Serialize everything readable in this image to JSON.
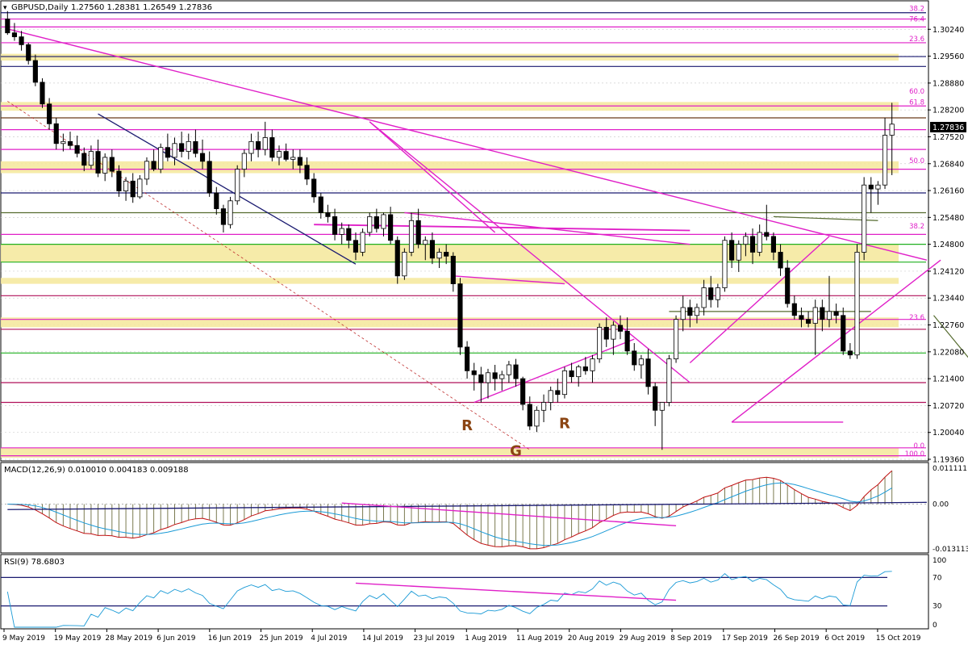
{
  "header": {
    "symbol_label": "GBPUSD,Daily",
    "ohlc_label": "1.27560 1.28381 1.26549 1.27836"
  },
  "macd_label": "MACD(12,26,9) 0.010010 0.004183 0.009188",
  "rsi_label": "RSI(9) 78.6803",
  "price_axis": {
    "ticks": [
      "1.30240",
      "1.29560",
      "1.28880",
      "1.28200",
      "1.27520",
      "1.26840",
      "1.26160",
      "1.25480",
      "1.24800",
      "1.24120",
      "1.23440",
      "1.22760",
      "1.22080",
      "1.21400",
      "1.20720",
      "1.20040",
      "1.19360"
    ],
    "current_price": "1.27836"
  },
  "macd_axis": {
    "ticks": [
      "0.011111",
      "0.00",
      "-0.013113"
    ]
  },
  "rsi_axis": {
    "ticks": [
      "100",
      "70",
      "30",
      "0"
    ]
  },
  "time_axis": [
    "9 May 2019",
    "19 May 2019",
    "28 May 2019",
    "6 Jun 2019",
    "16 Jun 2019",
    "25 Jun 2019",
    "4 Jul 2019",
    "14 Jul 2019",
    "23 Jul 2019",
    "1 Aug 2019",
    "11 Aug 2019",
    "20 Aug 2019",
    "29 Aug 2019",
    "8 Sep 2019",
    "17 Sep 2019",
    "26 Sep 2019",
    "6 Oct 2019",
    "15 Oct 2019"
  ],
  "fib_labels": [
    {
      "text": "38.2",
      "price": 1.3066
    },
    {
      "text": "76.4",
      "price": 1.304
    },
    {
      "text": "23.6",
      "price": 1.299
    },
    {
      "text": "60.0",
      "price": 1.2857
    },
    {
      "text": "61.8",
      "price": 1.283
    },
    {
      "text": "50.0",
      "price": 1.2681
    },
    {
      "text": "38.2",
      "price": 1.2516
    },
    {
      "text": "23.6",
      "price": 1.2285
    },
    {
      "text": "0.0",
      "price": 1.196
    },
    {
      "text": "100.0",
      "price": 1.194
    }
  ],
  "annotations": [
    {
      "text": "R",
      "date_index": 66,
      "price": 1.201
    },
    {
      "text": "R",
      "date_index": 80,
      "price": 1.2015
    },
    {
      "text": "G",
      "date_index": 73,
      "price": 1.1945
    }
  ],
  "colors": {
    "up_candle": "#ffffff",
    "down_candle": "#000000",
    "magenta": "#e020c8",
    "crimson": "#b0105a",
    "navy": "#1a1a70",
    "green": "#20b020",
    "olive": "#556b2f",
    "zone": "#f5e9a0",
    "signal": "#1a9ad6",
    "macd_line": "#c01010",
    "hist": "#7a7a50"
  },
  "chart_data": [
    {
      "type": "candlestick",
      "title": "GBPUSD,Daily",
      "ylim": [
        1.1936,
        1.3092
      ],
      "x_start": "2019-05-09",
      "x_end": "2019-10-17",
      "candles": [
        [
          1.305,
          1.307,
          1.301,
          1.3015
        ],
        [
          1.3015,
          1.304,
          1.2995,
          1.3005
        ],
        [
          1.3005,
          1.302,
          1.297,
          1.2985
        ],
        [
          1.2985,
          1.299,
          1.2935,
          1.2945
        ],
        [
          1.2945,
          1.296,
          1.288,
          1.289
        ],
        [
          1.289,
          1.29,
          1.2825,
          1.2835
        ],
        [
          1.2835,
          1.285,
          1.277,
          1.2785
        ],
        [
          1.2785,
          1.28,
          1.272,
          1.2735
        ],
        [
          1.2735,
          1.276,
          1.2715,
          1.274
        ],
        [
          1.274,
          1.2765,
          1.272,
          1.273
        ],
        [
          1.273,
          1.2755,
          1.27,
          1.271
        ],
        [
          1.271,
          1.2725,
          1.2665,
          1.268
        ],
        [
          1.268,
          1.273,
          1.267,
          1.2715
        ],
        [
          1.2715,
          1.2745,
          1.265,
          1.266
        ],
        [
          1.266,
          1.271,
          1.264,
          1.27
        ],
        [
          1.27,
          1.272,
          1.265,
          1.2665
        ],
        [
          1.2665,
          1.268,
          1.26,
          1.2615
        ],
        [
          1.2615,
          1.265,
          1.259,
          1.264
        ],
        [
          1.264,
          1.266,
          1.2585,
          1.26
        ],
        [
          1.26,
          1.2655,
          1.2595,
          1.2645
        ],
        [
          1.2645,
          1.27,
          1.263,
          1.269
        ],
        [
          1.269,
          1.272,
          1.2665,
          1.267
        ],
        [
          1.267,
          1.2735,
          1.266,
          1.2725
        ],
        [
          1.2725,
          1.276,
          1.269,
          1.27
        ],
        [
          1.27,
          1.275,
          1.268,
          1.2735
        ],
        [
          1.2735,
          1.2765,
          1.27,
          1.2715
        ],
        [
          1.2715,
          1.276,
          1.2695,
          1.274
        ],
        [
          1.274,
          1.277,
          1.27,
          1.271
        ],
        [
          1.271,
          1.2745,
          1.267,
          1.269
        ],
        [
          1.269,
          1.2715,
          1.26,
          1.261
        ],
        [
          1.261,
          1.2625,
          1.2555,
          1.257
        ],
        [
          1.257,
          1.258,
          1.251,
          1.253
        ],
        [
          1.253,
          1.26,
          1.252,
          1.259
        ],
        [
          1.259,
          1.268,
          1.258,
          1.267
        ],
        [
          1.267,
          1.272,
          1.265,
          1.271
        ],
        [
          1.271,
          1.276,
          1.269,
          1.274
        ],
        [
          1.274,
          1.2765,
          1.27,
          1.272
        ],
        [
          1.272,
          1.279,
          1.2705,
          1.275
        ],
        [
          1.275,
          1.277,
          1.269,
          1.27
        ],
        [
          1.27,
          1.273,
          1.268,
          1.2715
        ],
        [
          1.2715,
          1.2735,
          1.269,
          1.2695
        ],
        [
          1.2695,
          1.272,
          1.267,
          1.27
        ],
        [
          1.27,
          1.272,
          1.266,
          1.268
        ],
        [
          1.268,
          1.27,
          1.263,
          1.2645
        ],
        [
          1.2645,
          1.266,
          1.2585,
          1.26
        ],
        [
          1.26,
          1.261,
          1.2545,
          1.256
        ],
        [
          1.256,
          1.258,
          1.2535,
          1.255
        ],
        [
          1.255,
          1.257,
          1.249,
          1.2505
        ],
        [
          1.2505,
          1.2535,
          1.248,
          1.252
        ],
        [
          1.252,
          1.253,
          1.247,
          1.249
        ],
        [
          1.249,
          1.251,
          1.244,
          1.246
        ],
        [
          1.246,
          1.252,
          1.245,
          1.251
        ],
        [
          1.251,
          1.256,
          1.25,
          1.255
        ],
        [
          1.255,
          1.257,
          1.251,
          1.252
        ],
        [
          1.252,
          1.256,
          1.25,
          1.2555
        ],
        [
          1.2555,
          1.2575,
          1.248,
          1.249
        ],
        [
          1.249,
          1.25,
          1.238,
          1.24
        ],
        [
          1.24,
          1.247,
          1.239,
          1.246
        ],
        [
          1.246,
          1.256,
          1.245,
          1.254
        ],
        [
          1.254,
          1.257,
          1.247,
          1.248
        ],
        [
          1.248,
          1.25,
          1.244,
          1.249
        ],
        [
          1.249,
          1.251,
          1.243,
          1.2445
        ],
        [
          1.2445,
          1.247,
          1.242,
          1.246
        ],
        [
          1.246,
          1.248,
          1.243,
          1.245
        ],
        [
          1.245,
          1.246,
          1.236,
          1.238
        ],
        [
          1.238,
          1.2395,
          1.22,
          1.222
        ],
        [
          1.222,
          1.2235,
          1.214,
          1.216
        ],
        [
          1.216,
          1.218,
          1.211,
          1.215
        ],
        [
          1.215,
          1.217,
          1.208,
          1.213
        ],
        [
          1.213,
          1.2165,
          1.209,
          1.2155
        ],
        [
          1.2155,
          1.2175,
          1.211,
          1.214
        ],
        [
          1.214,
          1.216,
          1.211,
          1.215
        ],
        [
          1.215,
          1.2185,
          1.213,
          1.2175
        ],
        [
          1.2175,
          1.219,
          1.212,
          1.214
        ],
        [
          1.214,
          1.2145,
          1.206,
          1.2075
        ],
        [
          1.2075,
          1.2095,
          1.201,
          1.202
        ],
        [
          1.202,
          1.207,
          1.2005,
          1.206
        ],
        [
          1.206,
          1.21,
          1.203,
          1.208
        ],
        [
          1.208,
          1.212,
          1.206,
          1.211
        ],
        [
          1.211,
          1.214,
          1.208,
          1.21
        ],
        [
          1.21,
          1.217,
          1.209,
          1.216
        ],
        [
          1.216,
          1.218,
          1.213,
          1.2145
        ],
        [
          1.2145,
          1.2175,
          1.212,
          1.217
        ],
        [
          1.217,
          1.2195,
          1.215,
          1.216
        ],
        [
          1.216,
          1.22,
          1.213,
          1.219
        ],
        [
          1.219,
          1.228,
          1.218,
          1.227
        ],
        [
          1.227,
          1.2295,
          1.222,
          1.224
        ],
        [
          1.224,
          1.2285,
          1.22,
          1.2275
        ],
        [
          1.2275,
          1.23,
          1.224,
          1.226
        ],
        [
          1.226,
          1.2295,
          1.22,
          1.221
        ],
        [
          1.221,
          1.223,
          1.216,
          1.2175
        ],
        [
          1.2175,
          1.22,
          1.214,
          1.219
        ],
        [
          1.219,
          1.2215,
          1.21,
          1.212
        ],
        [
          1.212,
          1.213,
          1.202,
          1.206
        ],
        [
          1.206,
          1.2075,
          1.196,
          1.208
        ],
        [
          1.208,
          1.22,
          1.207,
          1.219
        ],
        [
          1.219,
          1.23,
          1.218,
          1.229
        ],
        [
          1.229,
          1.235,
          1.226,
          1.232
        ],
        [
          1.232,
          1.234,
          1.227,
          1.23
        ],
        [
          1.23,
          1.233,
          1.228,
          1.232
        ],
        [
          1.232,
          1.239,
          1.23,
          1.237
        ],
        [
          1.237,
          1.24,
          1.232,
          1.234
        ],
        [
          1.234,
          1.238,
          1.232,
          1.237
        ],
        [
          1.237,
          1.25,
          1.236,
          1.249
        ],
        [
          1.249,
          1.251,
          1.242,
          1.244
        ],
        [
          1.244,
          1.249,
          1.241,
          1.248
        ],
        [
          1.248,
          1.251,
          1.245,
          1.25
        ],
        [
          1.25,
          1.252,
          1.243,
          1.246
        ],
        [
          1.246,
          1.253,
          1.245,
          1.251
        ],
        [
          1.251,
          1.258,
          1.249,
          1.25
        ],
        [
          1.25,
          1.251,
          1.244,
          1.246
        ],
        [
          1.246,
          1.248,
          1.24,
          1.242
        ],
        [
          1.242,
          1.244,
          1.232,
          1.233
        ],
        [
          1.233,
          1.235,
          1.229,
          1.23
        ],
        [
          1.23,
          1.232,
          1.227,
          1.229
        ],
        [
          1.229,
          1.231,
          1.227,
          1.228
        ],
        [
          1.228,
          1.234,
          1.22,
          1.232
        ],
        [
          1.232,
          1.234,
          1.226,
          1.229
        ],
        [
          1.229,
          1.24,
          1.227,
          1.231
        ],
        [
          1.231,
          1.233,
          1.228,
          1.23
        ],
        [
          1.23,
          1.232,
          1.22,
          1.221
        ],
        [
          1.221,
          1.223,
          1.219,
          1.22
        ],
        [
          1.22,
          1.248,
          1.219,
          1.246
        ],
        [
          1.246,
          1.265,
          1.244,
          1.263
        ],
        [
          1.263,
          1.265,
          1.256,
          1.262
        ],
        [
          1.262,
          1.264,
          1.258,
          1.263
        ],
        [
          1.263,
          1.28,
          1.262,
          1.2756
        ],
        [
          1.2756,
          1.2838,
          1.2655,
          1.2784
        ]
      ],
      "horizontal_levels": [
        {
          "price": 1.3066,
          "color": "#1a1a70",
          "label": ""
        },
        {
          "price": 1.305,
          "color": "#e020c8",
          "label": ""
        },
        {
          "price": 1.303,
          "color": "#e020c8",
          "label": ""
        },
        {
          "price": 1.299,
          "color": "#e020c8",
          "label": ""
        },
        {
          "price": 1.2955,
          "color": "#1a1a70",
          "label": ""
        },
        {
          "price": 1.293,
          "color": "#1a1a70",
          "label": ""
        },
        {
          "price": 1.283,
          "color": "#e020c8",
          "label": ""
        },
        {
          "price": 1.28,
          "color": "#6b3b1a",
          "label": ""
        },
        {
          "price": 1.277,
          "color": "#e020c8",
          "label": ""
        },
        {
          "price": 1.272,
          "color": "#e020c8",
          "label": ""
        },
        {
          "price": 1.267,
          "color": "#e020c8",
          "label": ""
        },
        {
          "price": 1.261,
          "color": "#1a1a70",
          "label": ""
        },
        {
          "price": 1.256,
          "color": "#556b2f",
          "label": ""
        },
        {
          "price": 1.2505,
          "color": "#e020c8",
          "label": ""
        },
        {
          "price": 1.248,
          "color": "#20b020",
          "label": ""
        },
        {
          "price": 1.2435,
          "color": "#20b020",
          "label": ""
        },
        {
          "price": 1.235,
          "color": "#b0105a",
          "label": ""
        },
        {
          "price": 1.229,
          "color": "#e020c8",
          "label": ""
        },
        {
          "price": 1.2265,
          "color": "#b0105a",
          "label": ""
        },
        {
          "price": 1.2205,
          "color": "#20b020",
          "label": ""
        },
        {
          "price": 1.213,
          "color": "#b0105a",
          "label": ""
        },
        {
          "price": 1.208,
          "color": "#b0105a",
          "label": ""
        },
        {
          "price": 1.1965,
          "color": "#e020c8",
          "label": ""
        },
        {
          "price": 1.1945,
          "color": "#e020c8",
          "label": ""
        }
      ],
      "zones": [
        {
          "from": 1.2945,
          "to": 1.2962
        },
        {
          "from": 1.2818,
          "to": 1.284
        },
        {
          "from": 1.266,
          "to": 1.269
        },
        {
          "from": 1.2435,
          "to": 1.248
        },
        {
          "from": 1.238,
          "to": 1.2395
        },
        {
          "from": 1.227,
          "to": 1.2295
        },
        {
          "from": 1.194,
          "to": 1.1965
        }
      ]
    },
    {
      "type": "macd",
      "title": "MACD(12,26,9)",
      "ylim": [
        -0.013113,
        0.011111
      ],
      "values": {
        "macd": 0.01001,
        "signal": 0.004183,
        "histogram": 0.009188
      }
    },
    {
      "type": "rsi",
      "title": "RSI(9)",
      "ylim": [
        0,
        100
      ],
      "levels": [
        70,
        30
      ],
      "last": 78.6803
    }
  ]
}
